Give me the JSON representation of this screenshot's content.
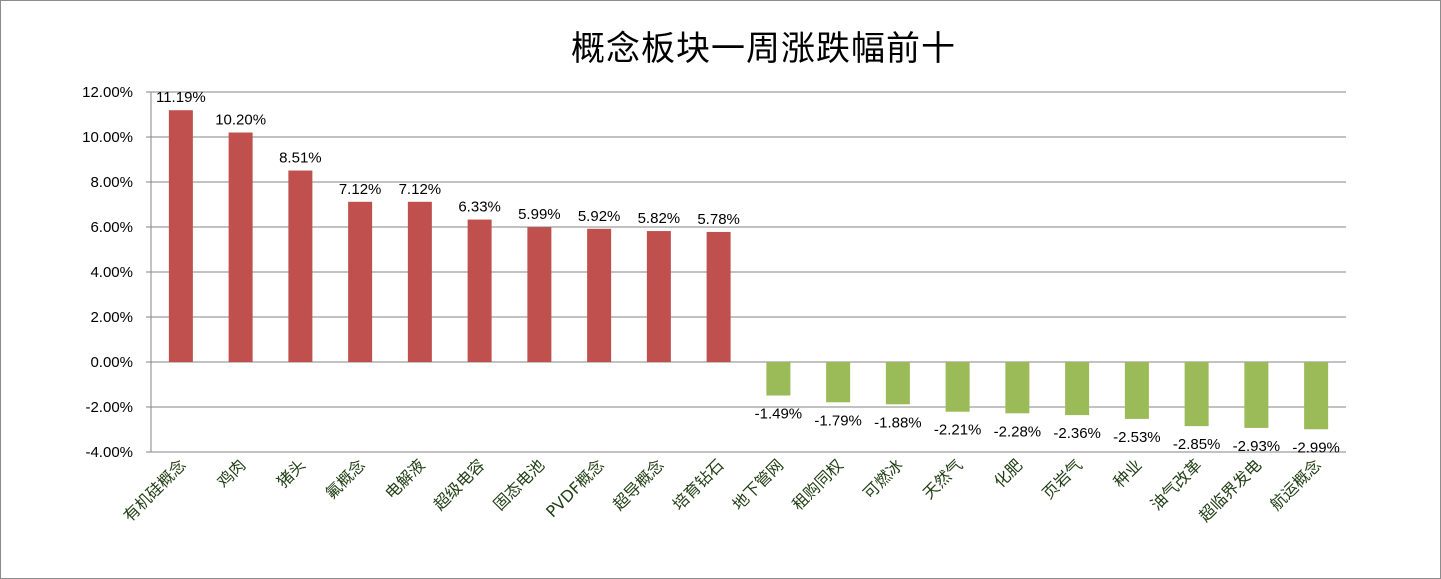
{
  "chart_data": {
    "type": "bar",
    "title": "概念板块一周涨跌幅前十",
    "xlabel": "",
    "ylabel": "",
    "ylim": [
      -4,
      12
    ],
    "yticks": [
      "12.00%",
      "10.00%",
      "8.00%",
      "6.00%",
      "4.00%",
      "2.00%",
      "0.00%",
      "-2.00%",
      "-4.00%"
    ],
    "ytick_values": [
      12,
      10,
      8,
      6,
      4,
      2,
      0,
      -2,
      -4
    ],
    "grid": true,
    "legend": "none",
    "colors": {
      "positive": "#c0504d",
      "negative": "#9bbb59",
      "grid": "#868686"
    },
    "categories": [
      "有机硅概念",
      "鸡肉",
      "猪头",
      "氟概念",
      "电解液",
      "超级电容",
      "固态电池",
      "PVDF概念",
      "超导概念",
      "培育钻石",
      "地下管网",
      "租购同权",
      "可燃冰",
      "天然气",
      "化肥",
      "页岩气",
      "种业",
      "油气改革",
      "超临界发电",
      "航运概念"
    ],
    "values": [
      11.19,
      10.2,
      8.51,
      7.12,
      7.12,
      6.33,
      5.99,
      5.92,
      5.82,
      5.78,
      -1.49,
      -1.79,
      -1.88,
      -2.21,
      -2.28,
      -2.36,
      -2.53,
      -2.85,
      -2.93,
      -2.99
    ],
    "data_labels": [
      "11.19%",
      "10.20%",
      "8.51%",
      "7.12%",
      "7.12%",
      "6.33%",
      "5.99%",
      "5.92%",
      "5.82%",
      "5.78%",
      "-1.49%",
      "-1.79%",
      "-1.88%",
      "-2.21%",
      "-2.28%",
      "-2.36%",
      "-2.53%",
      "-2.85%",
      "-2.93%",
      "-2.99%"
    ]
  }
}
